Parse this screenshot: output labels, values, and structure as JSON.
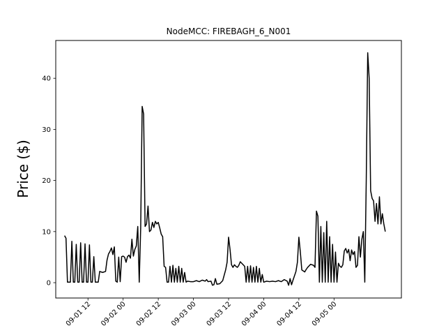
{
  "chart_data": {
    "type": "line",
    "title": "NodeMCC: FIREBAGH_6_N001",
    "xlabel": "",
    "ylabel": "Price ($)",
    "x_axis_type": "datetime",
    "xlim": [
      "2016-09-01 01:00",
      "2016-09-05 23:00"
    ],
    "ylim": [
      -3,
      47.4
    ],
    "x_ticks": [
      {
        "x": "2016-09-01 12:00",
        "label": "09-01 12"
      },
      {
        "x": "2016-09-02 00:00",
        "label": "09-02 00"
      },
      {
        "x": "2016-09-02 12:00",
        "label": "09-02 12"
      },
      {
        "x": "2016-09-03 00:00",
        "label": "09-03 00"
      },
      {
        "x": "2016-09-03 12:00",
        "label": "09-03 12"
      },
      {
        "x": "2016-09-04 00:00",
        "label": "09-04 00"
      },
      {
        "x": "2016-09-04 12:00",
        "label": "09-04 12"
      },
      {
        "x": "2016-09-05 00:00",
        "label": "09-05 00"
      }
    ],
    "y_ticks": [
      {
        "y": 0,
        "label": "0"
      },
      {
        "y": 10,
        "label": "10"
      },
      {
        "y": 20,
        "label": "20"
      },
      {
        "y": 30,
        "label": "30"
      },
      {
        "y": 40,
        "label": "40"
      }
    ],
    "grid": false,
    "legend": "none",
    "series": [
      {
        "color": "#000000",
        "points": [
          [
            "2016-09-01 04:00",
            9.2
          ],
          [
            "2016-09-01 04:30",
            8.7
          ],
          [
            "2016-09-01 05:00",
            0.1
          ],
          [
            "2016-09-01 05:30",
            0.1
          ],
          [
            "2016-09-01 06:00",
            0.1
          ],
          [
            "2016-09-01 06:30",
            8.1
          ],
          [
            "2016-09-01 07:00",
            0.1
          ],
          [
            "2016-09-01 07:30",
            0.1
          ],
          [
            "2016-09-01 08:00",
            7.5
          ],
          [
            "2016-09-01 08:30",
            0.1
          ],
          [
            "2016-09-01 09:00",
            0.1
          ],
          [
            "2016-09-01 09:30",
            7.8
          ],
          [
            "2016-09-01 10:00",
            0.1
          ],
          [
            "2016-09-01 10:30",
            0.1
          ],
          [
            "2016-09-01 11:00",
            7.6
          ],
          [
            "2016-09-01 11:30",
            0.1
          ],
          [
            "2016-09-01 12:00",
            0.1
          ],
          [
            "2016-09-01 12:30",
            7.4
          ],
          [
            "2016-09-01 13:00",
            0.1
          ],
          [
            "2016-09-01 13:30",
            0.1
          ],
          [
            "2016-09-01 14:00",
            5.1
          ],
          [
            "2016-09-01 14:30",
            0.1
          ],
          [
            "2016-09-01 15:00",
            0.1
          ],
          [
            "2016-09-01 15:30",
            0.1
          ],
          [
            "2016-09-01 16:00",
            2.2
          ],
          [
            "2016-09-01 17:00",
            2.0
          ],
          [
            "2016-09-01 18:00",
            2.2
          ],
          [
            "2016-09-01 18:30",
            4.4
          ],
          [
            "2016-09-01 19:00",
            5.6
          ],
          [
            "2016-09-01 19:30",
            6.1
          ],
          [
            "2016-09-01 20:00",
            6.8
          ],
          [
            "2016-09-01 20:30",
            5.5
          ],
          [
            "2016-09-01 21:00",
            7.0
          ],
          [
            "2016-09-01 21:30",
            0.3
          ],
          [
            "2016-09-01 22:00",
            0.1
          ],
          [
            "2016-09-01 22:30",
            5.0
          ],
          [
            "2016-09-01 23:00",
            0.2
          ],
          [
            "2016-09-01 23:30",
            5.1
          ],
          [
            "2016-09-02 00:00",
            5.2
          ],
          [
            "2016-09-02 00:30",
            5.0
          ],
          [
            "2016-09-02 01:00",
            4.0
          ],
          [
            "2016-09-02 01:30",
            5.1
          ],
          [
            "2016-09-02 02:00",
            5.4
          ],
          [
            "2016-09-02 02:30",
            4.8
          ],
          [
            "2016-09-02 03:00",
            8.5
          ],
          [
            "2016-09-02 03:30",
            5.2
          ],
          [
            "2016-09-02 04:00",
            6.5
          ],
          [
            "2016-09-02 04:30",
            7.2
          ],
          [
            "2016-09-02 05:00",
            11.0
          ],
          [
            "2016-09-02 05:30",
            0.1
          ],
          [
            "2016-09-02 06:00",
            10.8
          ],
          [
            "2016-09-02 06:30",
            34.5
          ],
          [
            "2016-09-02 07:00",
            33.0
          ],
          [
            "2016-09-02 07:30",
            11.0
          ],
          [
            "2016-09-02 08:00",
            11.5
          ],
          [
            "2016-09-02 08:30",
            15.0
          ],
          [
            "2016-09-02 09:00",
            10.0
          ],
          [
            "2016-09-02 09:30",
            10.3
          ],
          [
            "2016-09-02 10:00",
            11.8
          ],
          [
            "2016-09-02 10:30",
            10.8
          ],
          [
            "2016-09-02 11:00",
            12.0
          ],
          [
            "2016-09-02 11:30",
            11.5
          ],
          [
            "2016-09-02 12:00",
            11.8
          ],
          [
            "2016-09-02 12:30",
            10.7
          ],
          [
            "2016-09-02 13:00",
            9.5
          ],
          [
            "2016-09-02 13:30",
            9.0
          ],
          [
            "2016-09-02 14:00",
            3.2
          ],
          [
            "2016-09-02 14:30",
            3.0
          ],
          [
            "2016-09-02 15:00",
            0.1
          ],
          [
            "2016-09-02 15:30",
            0.1
          ],
          [
            "2016-09-02 16:00",
            3.2
          ],
          [
            "2016-09-02 16:30",
            0.1
          ],
          [
            "2016-09-02 17:00",
            3.4
          ],
          [
            "2016-09-02 17:30",
            0.1
          ],
          [
            "2016-09-02 18:00",
            2.8
          ],
          [
            "2016-09-02 18:30",
            0.1
          ],
          [
            "2016-09-02 19:00",
            3.2
          ],
          [
            "2016-09-02 19:30",
            0.1
          ],
          [
            "2016-09-02 20:00",
            2.8
          ],
          [
            "2016-09-02 20:30",
            0.1
          ],
          [
            "2016-09-02 21:00",
            2.0
          ],
          [
            "2016-09-02 21:30",
            0.1
          ],
          [
            "2016-09-02 22:00",
            0.3
          ],
          [
            "2016-09-02 23:00",
            0.2
          ],
          [
            "2016-09-03 00:00",
            0.2
          ],
          [
            "2016-09-03 01:00",
            0.4
          ],
          [
            "2016-09-03 02:00",
            0.2
          ],
          [
            "2016-09-03 03:00",
            0.5
          ],
          [
            "2016-09-03 04:00",
            0.3
          ],
          [
            "2016-09-03 04:30",
            0.6
          ],
          [
            "2016-09-03 05:00",
            0.2
          ],
          [
            "2016-09-03 06:00",
            0.3
          ],
          [
            "2016-09-03 06:30",
            -0.5
          ],
          [
            "2016-09-03 07:00",
            -0.4
          ],
          [
            "2016-09-03 07:30",
            0.8
          ],
          [
            "2016-09-03 08:00",
            -0.3
          ],
          [
            "2016-09-03 09:00",
            -0.2
          ],
          [
            "2016-09-03 10:00",
            0.4
          ],
          [
            "2016-09-03 11:00",
            2.5
          ],
          [
            "2016-09-03 11:30",
            4.0
          ],
          [
            "2016-09-03 12:00",
            8.9
          ],
          [
            "2016-09-03 12:30",
            6.5
          ],
          [
            "2016-09-03 13:00",
            3.5
          ],
          [
            "2016-09-03 13:30",
            3.0
          ],
          [
            "2016-09-03 14:00",
            3.5
          ],
          [
            "2016-09-03 14:30",
            3.2
          ],
          [
            "2016-09-03 15:00",
            3.0
          ],
          [
            "2016-09-03 15:30",
            3.4
          ],
          [
            "2016-09-03 16:00",
            4.1
          ],
          [
            "2016-09-03 16:30",
            3.8
          ],
          [
            "2016-09-03 17:00",
            3.5
          ],
          [
            "2016-09-03 17:30",
            3.2
          ],
          [
            "2016-09-03 18:00",
            0.1
          ],
          [
            "2016-09-03 18:30",
            3.2
          ],
          [
            "2016-09-03 19:00",
            0.1
          ],
          [
            "2016-09-03 19:30",
            3.3
          ],
          [
            "2016-09-03 20:00",
            0.1
          ],
          [
            "2016-09-03 20:30",
            3.0
          ],
          [
            "2016-09-03 21:00",
            0.1
          ],
          [
            "2016-09-03 21:30",
            3.2
          ],
          [
            "2016-09-03 22:00",
            0.1
          ],
          [
            "2016-09-03 22:30",
            2.8
          ],
          [
            "2016-09-03 23:00",
            0.1
          ],
          [
            "2016-09-03 23:30",
            1.6
          ],
          [
            "2016-09-04 00:00",
            0.1
          ],
          [
            "2016-09-04 01:00",
            0.3
          ],
          [
            "2016-09-04 02:00",
            0.2
          ],
          [
            "2016-09-04 03:00",
            0.3
          ],
          [
            "2016-09-04 04:00",
            0.2
          ],
          [
            "2016-09-04 05:00",
            0.4
          ],
          [
            "2016-09-04 06:00",
            0.2
          ],
          [
            "2016-09-04 07:00",
            0.6
          ],
          [
            "2016-09-04 08:00",
            0.3
          ],
          [
            "2016-09-04 08:30",
            -0.5
          ],
          [
            "2016-09-04 09:00",
            0.8
          ],
          [
            "2016-09-04 09:30",
            -0.4
          ],
          [
            "2016-09-04 10:00",
            0.5
          ],
          [
            "2016-09-04 11:00",
            2.2
          ],
          [
            "2016-09-04 11:30",
            4.0
          ],
          [
            "2016-09-04 12:00",
            8.9
          ],
          [
            "2016-09-04 12:30",
            6.0
          ],
          [
            "2016-09-04 13:00",
            2.5
          ],
          [
            "2016-09-04 14:00",
            2.1
          ],
          [
            "2016-09-04 14:30",
            2.6
          ],
          [
            "2016-09-04 15:00",
            3.0
          ],
          [
            "2016-09-04 16:00",
            3.6
          ],
          [
            "2016-09-04 17:00",
            3.4
          ],
          [
            "2016-09-04 17:30",
            3.0
          ],
          [
            "2016-09-04 18:00",
            14.0
          ],
          [
            "2016-09-04 18:30",
            13.0
          ],
          [
            "2016-09-04 19:00",
            0.1
          ],
          [
            "2016-09-04 19:30",
            11.0
          ],
          [
            "2016-09-04 20:00",
            0.1
          ],
          [
            "2016-09-04 20:30",
            9.8
          ],
          [
            "2016-09-04 21:00",
            0.1
          ],
          [
            "2016-09-04 21:30",
            12.0
          ],
          [
            "2016-09-04 22:00",
            0.1
          ],
          [
            "2016-09-04 22:30",
            9.0
          ],
          [
            "2016-09-04 23:00",
            0.1
          ],
          [
            "2016-09-04 23:30",
            7.5
          ],
          [
            "2016-09-05 00:00",
            0.1
          ],
          [
            "2016-09-05 00:30",
            6.0
          ],
          [
            "2016-09-05 01:00",
            0.1
          ],
          [
            "2016-09-05 01:30",
            3.8
          ],
          [
            "2016-09-05 02:00",
            3.2
          ],
          [
            "2016-09-05 02:30",
            3.0
          ],
          [
            "2016-09-05 03:00",
            3.5
          ],
          [
            "2016-09-05 03:30",
            6.2
          ],
          [
            "2016-09-05 04:00",
            6.7
          ],
          [
            "2016-09-05 04:30",
            5.8
          ],
          [
            "2016-09-05 05:00",
            6.5
          ],
          [
            "2016-09-05 05:30",
            4.3
          ],
          [
            "2016-09-05 06:00",
            6.4
          ],
          [
            "2016-09-05 06:30",
            5.5
          ],
          [
            "2016-09-05 07:00",
            6.1
          ],
          [
            "2016-09-05 07:30",
            3.0
          ],
          [
            "2016-09-05 08:00",
            3.4
          ],
          [
            "2016-09-05 08:30",
            9.0
          ],
          [
            "2016-09-05 09:00",
            5.0
          ],
          [
            "2016-09-05 09:30",
            8.5
          ],
          [
            "2016-09-05 10:00",
            10.0
          ],
          [
            "2016-09-05 10:30",
            0.1
          ],
          [
            "2016-09-05 11:00",
            20.0
          ],
          [
            "2016-09-05 11:30",
            45.0
          ],
          [
            "2016-09-05 12:00",
            40.0
          ],
          [
            "2016-09-05 12:30",
            18.0
          ],
          [
            "2016-09-05 13:00",
            16.5
          ],
          [
            "2016-09-05 13:30",
            16.0
          ],
          [
            "2016-09-05 14:00",
            12.0
          ],
          [
            "2016-09-05 14:30",
            15.5
          ],
          [
            "2016-09-05 15:00",
            11.5
          ],
          [
            "2016-09-05 15:30",
            16.8
          ],
          [
            "2016-09-05 16:00",
            11.5
          ],
          [
            "2016-09-05 16:30",
            13.5
          ],
          [
            "2016-09-05 17:00",
            11.5
          ],
          [
            "2016-09-05 17:30",
            10.0
          ]
        ]
      }
    ]
  }
}
